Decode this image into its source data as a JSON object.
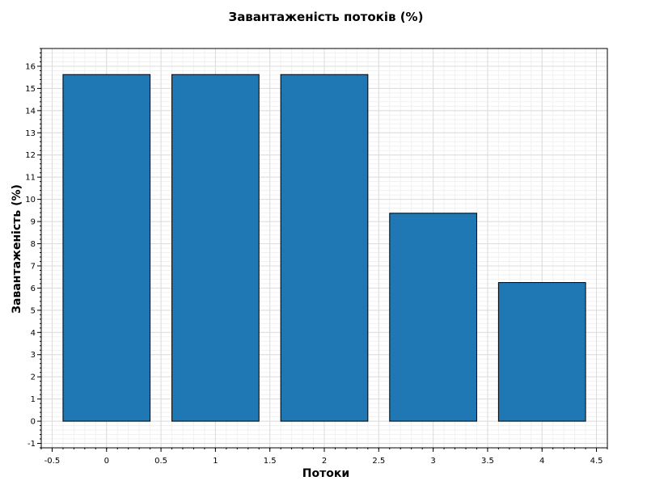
{
  "chart_data": {
    "type": "bar",
    "title": "Завантаженість потоків (%)",
    "xlabel": "Потоки",
    "ylabel": "Завантаженість (%)",
    "x": [
      0,
      1,
      2,
      3,
      4
    ],
    "values": [
      15.625,
      15.625,
      15.625,
      9.375,
      6.25
    ],
    "bar_width": 0.8,
    "xlim": [
      -0.6,
      4.6
    ],
    "ylim": [
      -1.2,
      16.8
    ],
    "x_ticks": [
      -0.5,
      0,
      0.5,
      1,
      1.5,
      2,
      2.5,
      3,
      3.5,
      4,
      4.5
    ],
    "x_tick_labels": [
      "-0.5",
      "0",
      "0.5",
      "1",
      "1.5",
      "2",
      "2.5",
      "3",
      "3.5",
      "4",
      "4.5"
    ],
    "y_ticks": [
      -1,
      0,
      1,
      2,
      3,
      4,
      5,
      6,
      7,
      8,
      9,
      10,
      11,
      12,
      13,
      14,
      15,
      16
    ],
    "y_tick_labels": [
      "-1",
      "0",
      "1",
      "2",
      "3",
      "4",
      "5",
      "6",
      "7",
      "8",
      "9",
      "10",
      "11",
      "12",
      "13",
      "14",
      "15",
      "16"
    ],
    "grid": true,
    "bar_color": "#1f77b4",
    "bar_edge_color": "#000000"
  }
}
